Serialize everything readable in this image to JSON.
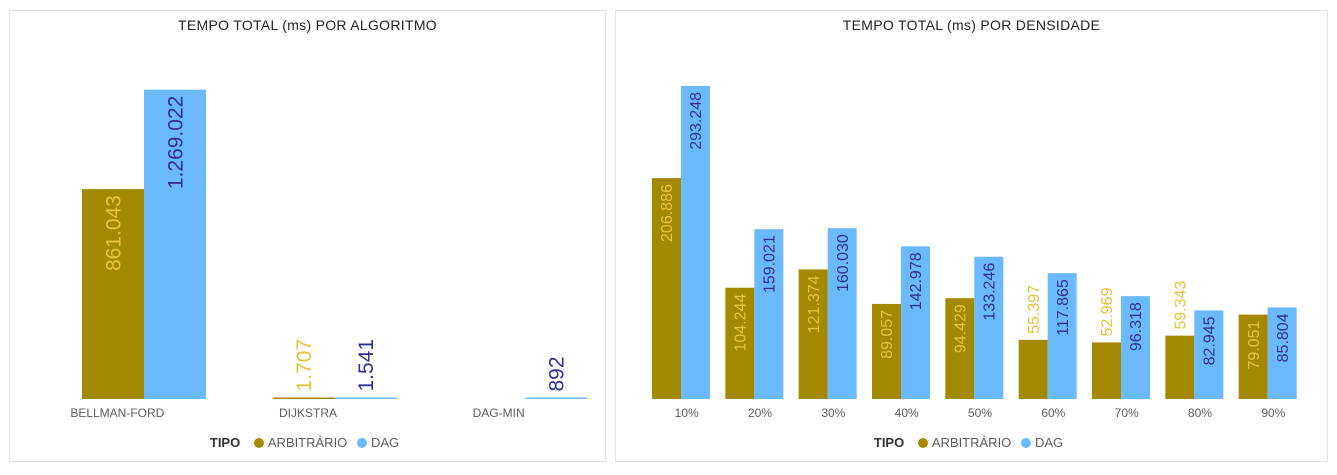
{
  "colors": {
    "arbitrario": "#a38900",
    "dag": "#6bb9ff",
    "label_arbitrario": "#e6c33a",
    "label_dag": "#2e3192",
    "axis_text": "#605e5c"
  },
  "chart_data": [
    {
      "type": "bar",
      "title": "TEMPO TOTAL (ms) POR ALGORITMO",
      "categories": [
        "BELLMAN-FORD",
        "DIJKSTRA",
        "DAG-MIN"
      ],
      "series": [
        {
          "name": "ARBITRÁRIO",
          "values": [
            861043,
            1707,
            null
          ],
          "labels": [
            "861.043",
            "1.707",
            ""
          ]
        },
        {
          "name": "DAG",
          "values": [
            1269022,
            1541,
            892
          ],
          "labels": [
            "1.269.022",
            "1.541",
            "892"
          ]
        }
      ],
      "ylim": [
        0,
        1280000
      ],
      "legend_title": "TIPO"
    },
    {
      "type": "bar",
      "title": "TEMPO TOTAL (ms) POR DENSIDADE",
      "categories": [
        "10%",
        "20%",
        "30%",
        "40%",
        "50%",
        "60%",
        "70%",
        "80%",
        "90%"
      ],
      "series": [
        {
          "name": "ARBITRÁRIO",
          "values": [
            206886,
            104244,
            121374,
            89057,
            94429,
            55397,
            52969,
            59343,
            79051
          ],
          "labels": [
            "206.886",
            "104.244",
            "121.374",
            "89.057",
            "94.429",
            "55.397",
            "52.969",
            "59.343",
            "79.051"
          ]
        },
        {
          "name": "DAG",
          "values": [
            293248,
            159021,
            160030,
            142978,
            133246,
            117865,
            96318,
            82945,
            85804
          ],
          "labels": [
            "293.248",
            "159.021",
            "160.030",
            "142.978",
            "133.246",
            "117.865",
            "96.318",
            "82.945",
            "85.804"
          ]
        }
      ],
      "ylim": [
        0,
        296000
      ],
      "legend_title": "TIPO"
    }
  ]
}
